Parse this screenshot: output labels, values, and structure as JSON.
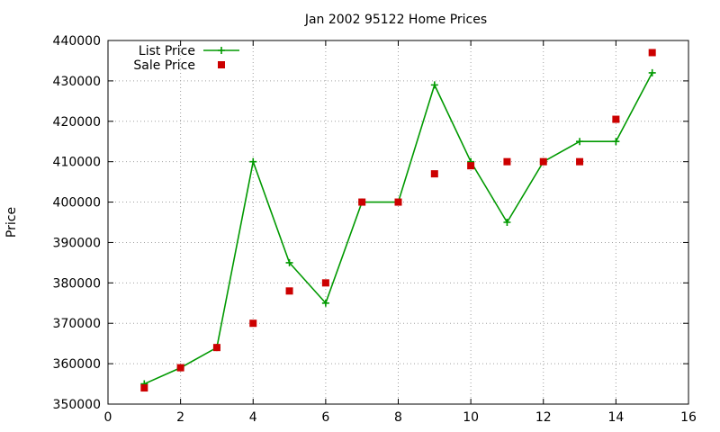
{
  "chart_data": {
    "type": "line",
    "title": "Jan 2002 95122 Home Prices",
    "xlabel": "",
    "ylabel": "Price",
    "xlim": [
      0,
      16
    ],
    "ylim": [
      350000,
      440000
    ],
    "x_ticks": [
      "0",
      "2",
      "4",
      "6",
      "8",
      "10",
      "12",
      "14",
      "16"
    ],
    "y_ticks": [
      "350000",
      "360000",
      "370000",
      "380000",
      "390000",
      "400000",
      "410000",
      "420000",
      "430000",
      "440000"
    ],
    "grid": true,
    "legend_position": "top-left",
    "series": [
      {
        "name": "List Price",
        "style": "line+plus",
        "color": "#009900",
        "x": [
          1,
          2,
          3,
          4,
          5,
          6,
          7,
          8,
          9,
          10,
          11,
          12,
          13,
          14,
          15
        ],
        "y": [
          355000,
          359000,
          364000,
          410000,
          385000,
          375000,
          400000,
          400000,
          429000,
          410000,
          395000,
          410000,
          415000,
          415000,
          432000
        ]
      },
      {
        "name": "Sale Price",
        "style": "square",
        "color": "#cc0000",
        "x": [
          1,
          2,
          3,
          4,
          5,
          6,
          7,
          8,
          9,
          10,
          11,
          12,
          13,
          14,
          15
        ],
        "y": [
          354000,
          359000,
          364000,
          370000,
          378000,
          380000,
          400000,
          400000,
          407000,
          409000,
          410000,
          410000,
          410000,
          420500,
          437000
        ]
      }
    ]
  }
}
